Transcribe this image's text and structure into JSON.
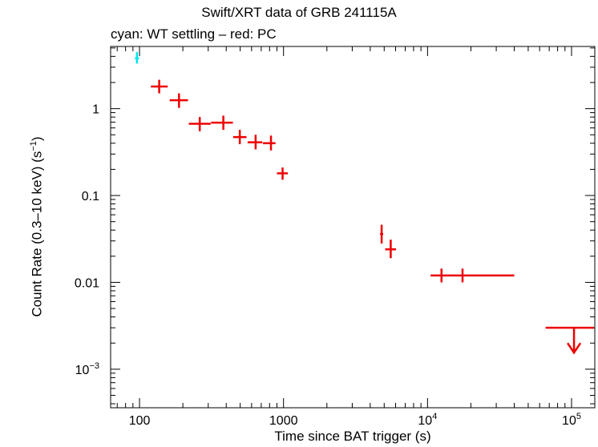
{
  "chart_data": {
    "type": "scatter",
    "title": "Swift/XRT data of GRB 241115A",
    "subtitle": "cyan: WT settling – red: PC",
    "xlabel": "Time since BAT trigger (s)",
    "ylabel_text": "Count Rate (0.3–10 keV) (s",
    "ylabel_sup": "−1",
    "ylabel_close": ")",
    "x_scale": "log",
    "y_scale": "log",
    "xlim": [
      63,
      145000
    ],
    "ylim": [
      0.00036,
      5.2
    ],
    "grid": false,
    "x_ticks": [
      {
        "value": 100,
        "label": "100",
        "sup": ""
      },
      {
        "value": 1000,
        "label": "1000",
        "sup": ""
      },
      {
        "value": 10000,
        "label": "10",
        "sup": "4"
      },
      {
        "value": 100000,
        "label": "10",
        "sup": "5"
      }
    ],
    "y_ticks": [
      {
        "value": 1,
        "label": "1",
        "sup": ""
      },
      {
        "value": 0.1,
        "label": "0.1",
        "sup": ""
      },
      {
        "value": 0.01,
        "label": "0.01",
        "sup": ""
      },
      {
        "value": 0.001,
        "label": "10",
        "sup": "−3"
      }
    ],
    "colors": {
      "wt_settling": "#00e5ee",
      "pc": "#ee0000"
    },
    "series": [
      {
        "name": "WT settling",
        "color": "#00e5ee",
        "points": [
          {
            "x": 96,
            "xlo": 93,
            "xhi": 99,
            "y": 3.8,
            "ylo": 3.3,
            "yhi": 4.5
          }
        ]
      },
      {
        "name": "PC",
        "color": "#ee0000",
        "points": [
          {
            "x": 137,
            "xlo": 120,
            "xhi": 157,
            "y": 1.8,
            "ylo": 1.5,
            "yhi": 2.15
          },
          {
            "x": 188,
            "xlo": 162,
            "xhi": 217,
            "y": 1.25,
            "ylo": 1.02,
            "yhi": 1.5
          },
          {
            "x": 262,
            "xlo": 220,
            "xhi": 312,
            "y": 0.67,
            "ylo": 0.55,
            "yhi": 0.8
          },
          {
            "x": 382,
            "xlo": 314,
            "xhi": 445,
            "y": 0.69,
            "ylo": 0.57,
            "yhi": 0.83
          },
          {
            "x": 497,
            "xlo": 447,
            "xhi": 553,
            "y": 0.47,
            "ylo": 0.39,
            "yhi": 0.57
          },
          {
            "x": 640,
            "xlo": 563,
            "xhi": 713,
            "y": 0.41,
            "ylo": 0.34,
            "yhi": 0.5
          },
          {
            "x": 818,
            "xlo": 720,
            "xhi": 880,
            "y": 0.4,
            "ylo": 0.33,
            "yhi": 0.49
          },
          {
            "x": 985,
            "xlo": 900,
            "xhi": 1072,
            "y": 0.18,
            "ylo": 0.152,
            "yhi": 0.21
          },
          {
            "x": 4800,
            "xlo": 4680,
            "xhi": 4920,
            "y": 0.036,
            "ylo": 0.028,
            "yhi": 0.046
          },
          {
            "x": 5550,
            "xlo": 5080,
            "xhi": 6040,
            "y": 0.024,
            "ylo": 0.019,
            "yhi": 0.031
          },
          {
            "x": 12500,
            "xlo": 10500,
            "xhi": 14900,
            "y": 0.012,
            "ylo": 0.01,
            "yhi": 0.0144
          },
          {
            "x": 17500,
            "xlo": 14900,
            "xhi": 40000,
            "y": 0.012,
            "ylo": 0.01,
            "yhi": 0.0144
          }
        ]
      }
    ],
    "upper_limits": [
      {
        "series": "PC",
        "color": "#ee0000",
        "x": 104000,
        "xlo": 66000,
        "xhi": 143000,
        "y": 0.003,
        "arrow_to": 0.00155
      }
    ]
  }
}
